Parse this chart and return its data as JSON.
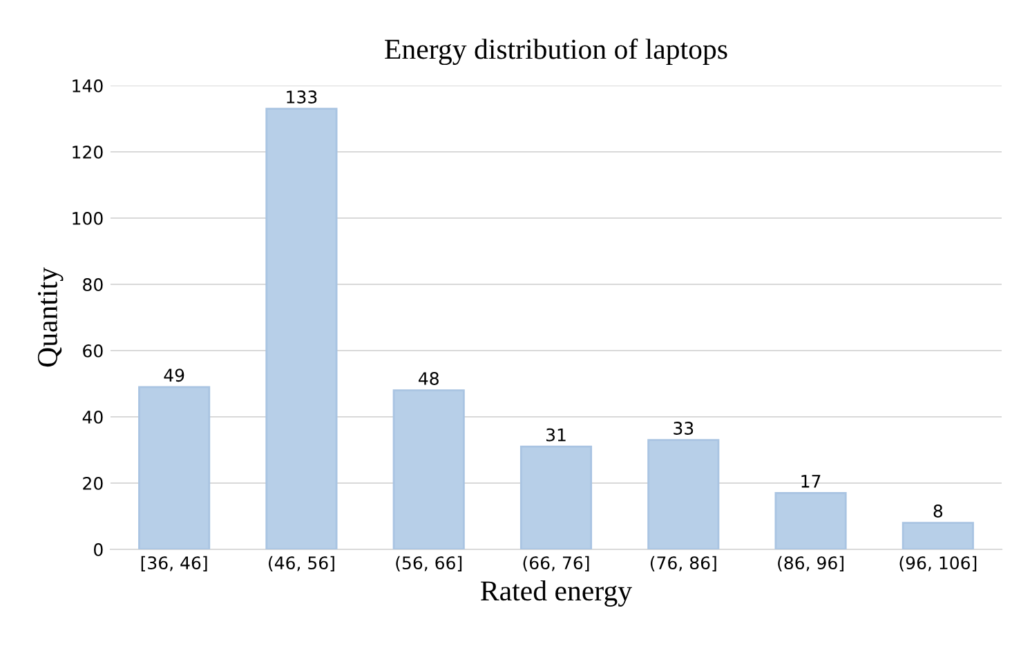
{
  "chart_data": {
    "type": "bar",
    "title": "Energy distribution of laptops",
    "xlabel": "Rated energy",
    "ylabel": "Quantity",
    "categories": [
      "[36, 46]",
      "(46, 56]",
      "(56, 66]",
      "(66, 76]",
      "(76, 86]",
      "(86, 96]",
      "(96, 106]"
    ],
    "values": [
      49,
      133,
      48,
      31,
      33,
      17,
      8
    ],
    "color": "#b7cfe8",
    "ylim": [
      0,
      140
    ],
    "yticks": [
      0,
      20,
      40,
      60,
      80,
      100,
      120,
      140
    ],
    "grid": "y",
    "data_labels": true
  }
}
